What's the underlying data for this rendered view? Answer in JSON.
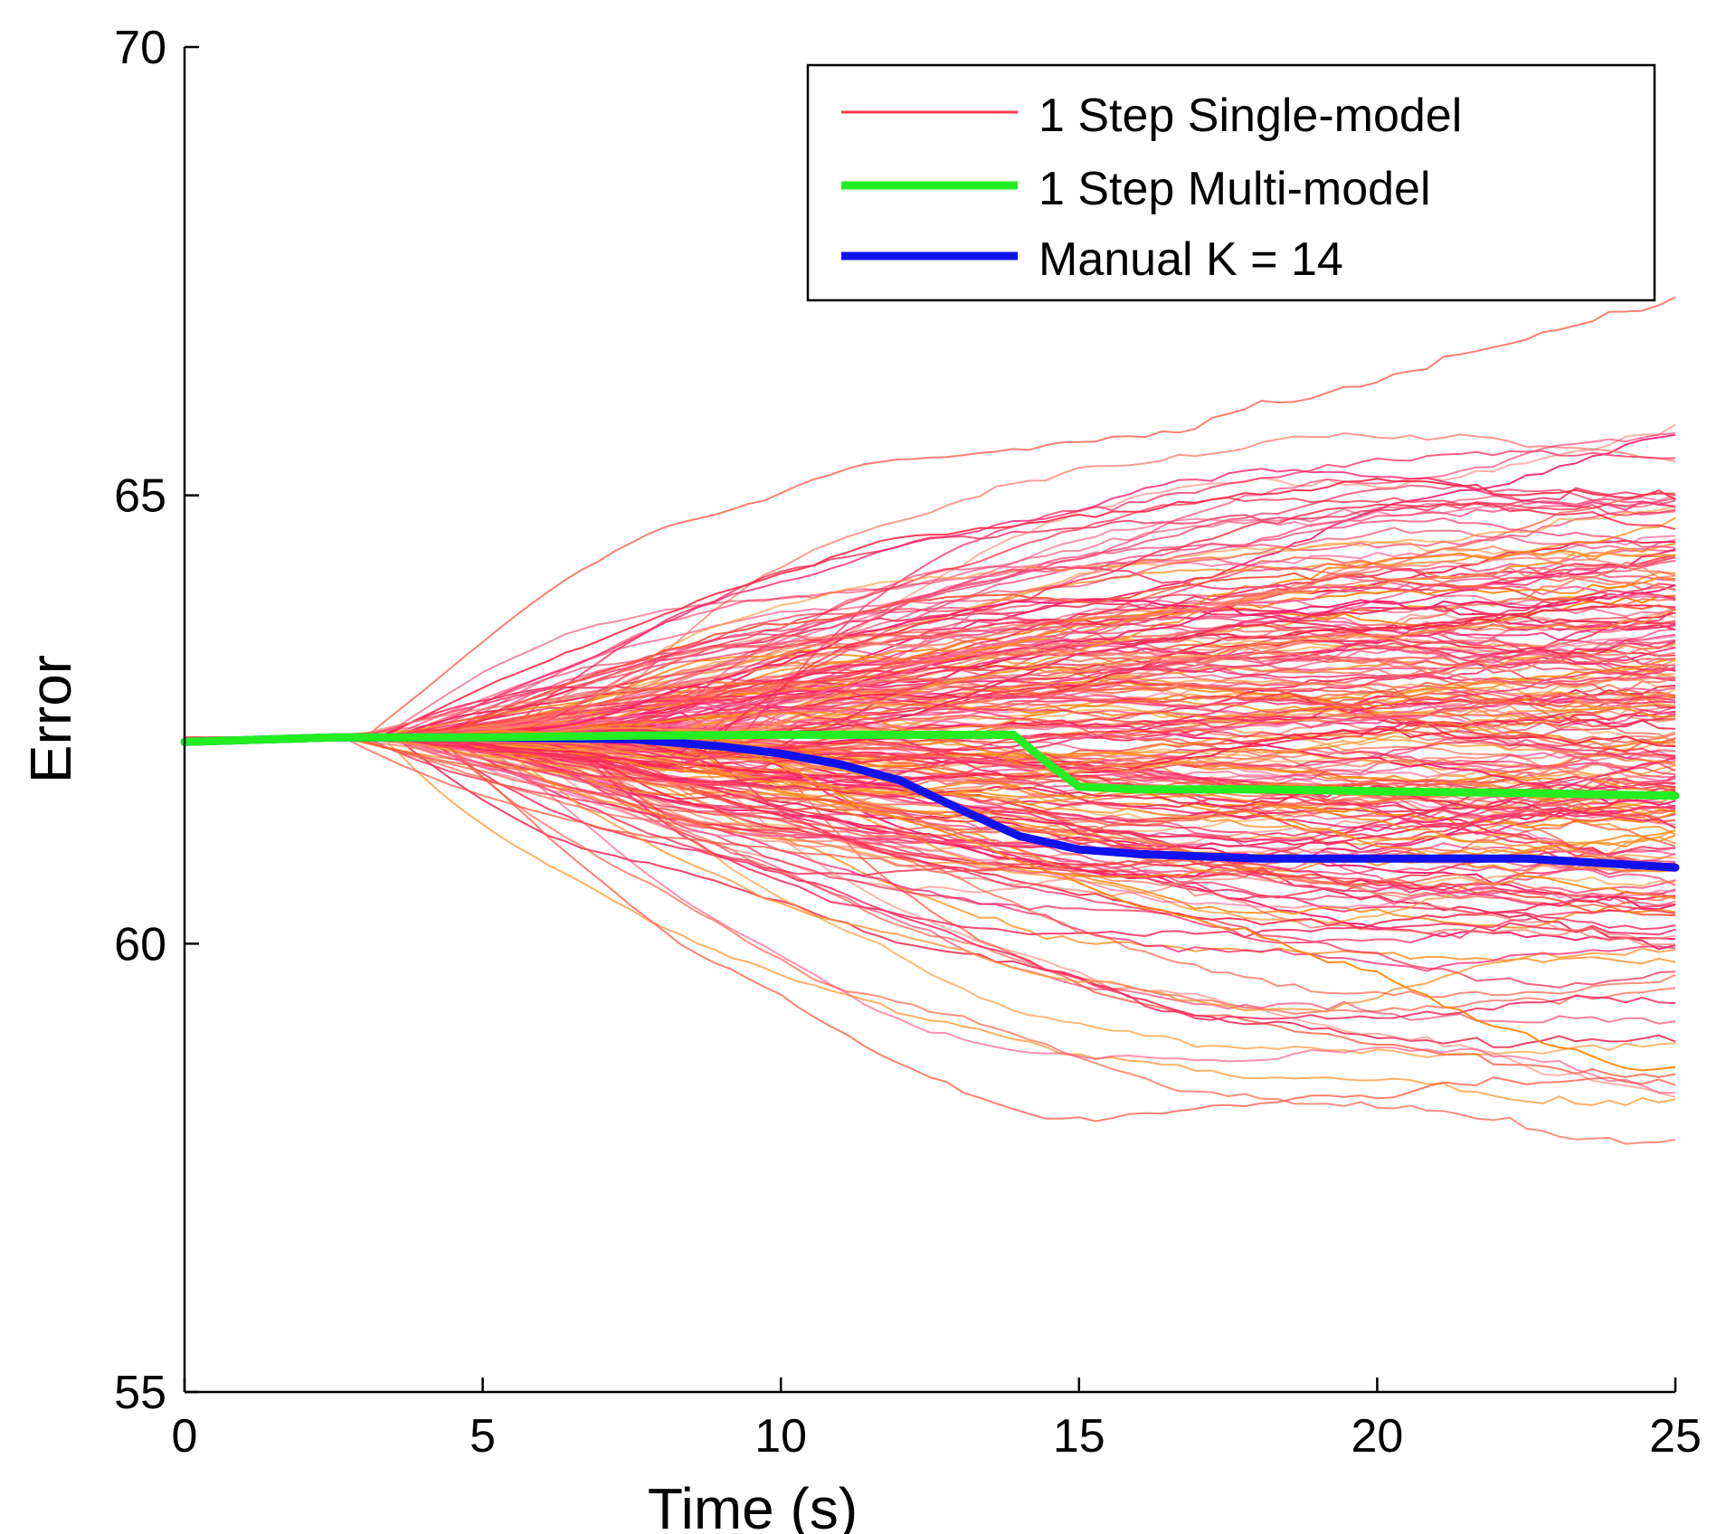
{
  "chart_data": {
    "type": "line",
    "title": "",
    "xlabel": "Time (s)",
    "ylabel": "Error",
    "xlim": [
      0,
      25
    ],
    "ylim": [
      55,
      70
    ],
    "xticks": [
      0,
      5,
      10,
      15,
      20,
      25
    ],
    "yticks": [
      55,
      60,
      65,
      70
    ],
    "grid": false,
    "legend_position": "top-right",
    "series": [
      {
        "name": "1 Step Single-model",
        "color": "#ff3355",
        "style": "many thin trajectories",
        "x": [
          0,
          2.5,
          5,
          7.5,
          10,
          12.5,
          15,
          17.5,
          20,
          22.5,
          25
        ],
        "y": [
          62.3,
          62.3,
          62.3,
          62.3,
          62.3,
          62.3,
          62.3,
          62.3,
          62.3,
          62.3,
          62.3
        ]
      },
      {
        "name": "1 Step Multi-model",
        "color": "#22ee22",
        "x": [
          0,
          2.5,
          5,
          7.5,
          10,
          12.5,
          13.9,
          14.5,
          15,
          16,
          18,
          20,
          22.5,
          25
        ],
        "y": [
          62.25,
          62.3,
          62.3,
          62.32,
          62.33,
          62.33,
          62.33,
          62.0,
          61.75,
          61.72,
          61.72,
          61.7,
          61.68,
          61.65
        ]
      },
      {
        "name": "Manual K = 14",
        "color": "#1111ee",
        "x": [
          0,
          2.5,
          5,
          7.5,
          9,
          10,
          11,
          12,
          13,
          14,
          15,
          16,
          18,
          20,
          22.5,
          25
        ],
        "y": [
          62.25,
          62.3,
          62.3,
          62.28,
          62.2,
          62.12,
          62.0,
          61.82,
          61.5,
          61.2,
          61.05,
          61.0,
          60.95,
          60.95,
          60.95,
          60.85
        ]
      }
    ]
  }
}
